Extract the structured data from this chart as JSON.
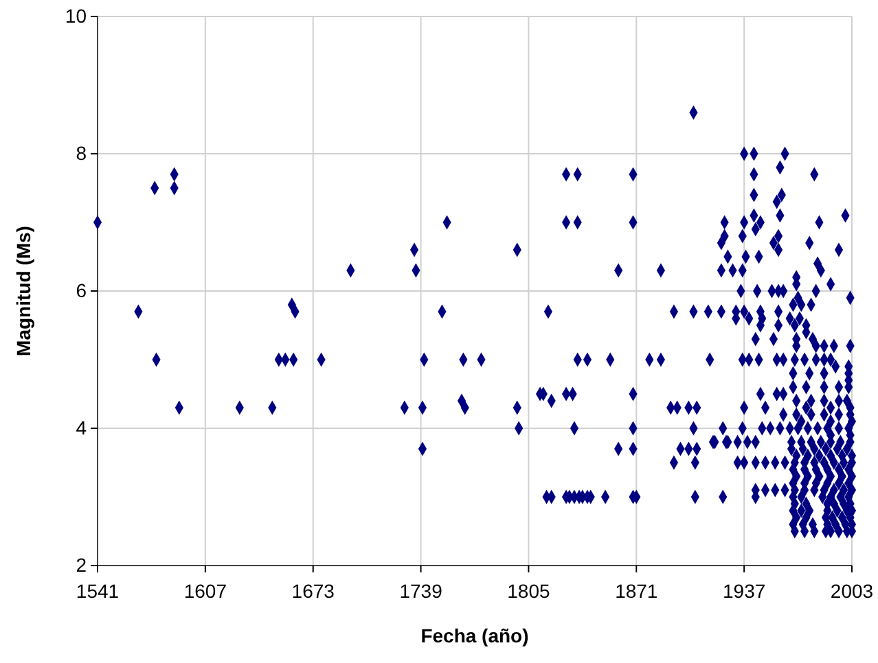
{
  "chart_data": {
    "type": "scatter",
    "xlabel": "Fecha (año)",
    "ylabel": "Magnitud (Ms)",
    "color": "#000080",
    "marker": "diamond",
    "grid": true,
    "xlim": [
      1541,
      2003
    ],
    "xticks": [
      1541,
      1607,
      1673,
      1739,
      1805,
      1871,
      1937,
      2003
    ],
    "ylim": [
      2,
      10
    ],
    "yticks": [
      2,
      4,
      6,
      8,
      10
    ],
    "x": [
      1541,
      1576,
      1588,
      1588,
      1566,
      1577,
      1591,
      1628,
      1648,
      1652,
      1656,
      1661,
      1660,
      1662,
      1678,
      1696,
      1735,
      1736,
      1755,
      1752,
      1741,
      1729,
      1740,
      1740,
      1765,
      1764,
      1766,
      1776,
      1798,
      1798,
      1799,
      1817,
      1828,
      1835,
      1869,
      1828,
      1835,
      1869,
      1860,
      1886,
      1906,
      1835,
      1841,
      1855,
      1879,
      1886,
      1916,
      1894,
      1906,
      1915,
      1812,
      1814,
      1819,
      1828,
      1832,
      1869,
      1892,
      1896,
      1903,
      1908,
      1833,
      1869,
      1906,
      1924,
      1919,
      1926,
      1860,
      1869,
      1898,
      1903,
      1908,
      1894,
      1907,
      1816,
      1819,
      1828,
      1830,
      1833,
      1836,
      1838,
      1841,
      1843,
      1852,
      1869,
      1871,
      1907,
      1924,
      1937,
      1943,
      1962,
      1943,
      1959,
      1980,
      1943,
      1957,
      1960,
      1943,
      1937,
      1925,
      1947,
      1959,
      1983,
      1999,
      1944,
      1936,
      1925,
      1923,
      1955,
      1958,
      1977,
      1958,
      1995,
      1927,
      1938,
      1946,
      1923,
      1930,
      1936,
      1982,
      1984,
      1969,
      1969,
      1990,
      1935,
      1945,
      1954,
      1958,
      1961,
      1981,
      1970,
      2002,
      1923,
      1932,
      1937,
      1947,
      1958,
      1967,
      1972,
      1978,
      1932,
      1940,
      1948,
      1965,
      1971,
      1947,
      1958,
      1968,
      1975,
      1975,
      1944,
      1955,
      1969,
      1979,
      1969,
      1981,
      1986,
      1992,
      2002,
      1936,
      1940,
      1946,
      1957,
      1961,
      1968,
      1974,
      1981,
      1986,
      1990,
      1993,
      2001,
      2001,
      2001,
      2001,
      1967,
      1977,
      1986,
      1967,
      1975,
      1986,
      1995,
      1947,
      1957,
      1961,
      1969,
      1978,
      1986,
      1995,
      2000,
      1937,
      1950,
      1961,
      1969,
      1978,
      1986,
      1995,
      2002,
      1936,
      1948,
      1953,
      1959,
      1965,
      1970,
      1976,
      1982,
      1988,
      1995,
      2001,
      1918,
      1927,
      1933,
      1939,
      1944,
      1966,
      1972,
      1978,
      1984,
      1990,
      1996,
      2002,
      1933,
      1937,
      1944,
      1950,
      1956,
      1962,
      1968,
      1974,
      1980,
      1986,
      1992,
      1998,
      2003,
      1944,
      1950,
      1956,
      1962,
      1968,
      1974,
      1980,
      1986,
      1992,
      1998,
      2003,
      1944,
      1967,
      1972,
      1985,
      1990,
      1996,
      2001,
      1966,
      1973,
      1980,
      1987,
      1994,
      2000,
      1969,
      1976,
      1983,
      1990,
      1997,
      2003,
      1967,
      1974,
      1981,
      1988,
      1995,
      2001,
      1969,
      1976,
      1983,
      1990,
      1997,
      2003,
      1967,
      1974,
      1981,
      1988,
      1995,
      2001,
      1968,
      1975,
      1988,
      1992,
      1998,
      2002,
      1967,
      1972,
      1977,
      1988,
      1994,
      2000,
      2003,
      1969,
      1975,
      1987,
      1991,
      1997,
      2002,
      1967,
      1973,
      1979,
      1988,
      1993,
      1999,
      2003,
      1968,
      1974,
      1980,
      1987,
      1990,
      1995,
      2000,
      2003,
      1990,
      2002,
      1972,
      1990,
      2003,
      1975,
      1990,
      2002
    ],
    "values": [
      7.0,
      7.5,
      7.7,
      7.5,
      5.7,
      5.0,
      4.3,
      4.3,
      4.3,
      5.0,
      5.0,
      5.0,
      5.8,
      5.7,
      5.0,
      6.3,
      6.6,
      6.3,
      7.0,
      5.7,
      5.0,
      4.3,
      4.3,
      3.7,
      5.0,
      4.4,
      4.3,
      5.0,
      6.6,
      4.3,
      4.0,
      5.7,
      7.7,
      7.7,
      7.7,
      7.0,
      7.0,
      7.0,
      6.3,
      6.3,
      8.6,
      5.0,
      5.0,
      5.0,
      5.0,
      5.0,
      5.0,
      5.7,
      5.7,
      5.7,
      4.5,
      4.5,
      4.4,
      4.5,
      4.5,
      4.5,
      4.3,
      4.3,
      4.3,
      4.3,
      4.0,
      4.0,
      4.0,
      4.0,
      3.8,
      3.8,
      3.7,
      3.7,
      3.7,
      3.7,
      3.7,
      3.5,
      3.5,
      3.0,
      3.0,
      3.0,
      3.0,
      3.0,
      3.0,
      3.0,
      3.0,
      3.0,
      3.0,
      3.0,
      3.0,
      3.0,
      3.0,
      8.0,
      8.0,
      8.0,
      7.7,
      7.8,
      7.7,
      7.4,
      7.3,
      7.4,
      7.1,
      7.0,
      7.0,
      7.0,
      7.1,
      7.0,
      7.1,
      6.9,
      6.8,
      6.8,
      6.7,
      6.7,
      6.8,
      6.7,
      6.6,
      6.6,
      6.5,
      6.5,
      6.5,
      6.3,
      6.3,
      6.3,
      6.4,
      6.3,
      6.2,
      6.1,
      6.1,
      6.0,
      6.0,
      6.0,
      6.0,
      6.0,
      6.0,
      5.9,
      5.9,
      5.7,
      5.7,
      5.7,
      5.7,
      5.7,
      5.8,
      5.8,
      5.8,
      5.6,
      5.6,
      5.6,
      5.6,
      5.6,
      5.5,
      5.5,
      5.5,
      5.5,
      5.4,
      5.3,
      5.3,
      5.3,
      5.3,
      5.2,
      5.2,
      5.2,
      5.2,
      5.2,
      5.0,
      5.0,
      5.0,
      5.0,
      5.0,
      5.0,
      5.0,
      5.0,
      5.0,
      5.0,
      4.9,
      4.9,
      4.8,
      4.7,
      4.6,
      4.8,
      4.8,
      4.8,
      4.6,
      4.6,
      4.6,
      4.6,
      4.5,
      4.5,
      4.5,
      4.4,
      4.4,
      4.4,
      4.4,
      4.4,
      4.3,
      4.3,
      4.2,
      4.2,
      4.2,
      4.2,
      4.2,
      4.2,
      4.0,
      4.0,
      4.0,
      4.0,
      4.0,
      4.0,
      4.0,
      4.0,
      4.0,
      4.0,
      4.0,
      3.8,
      3.8,
      3.8,
      3.8,
      3.8,
      3.8,
      3.8,
      3.8,
      3.8,
      3.8,
      3.8,
      3.8,
      3.5,
      3.5,
      3.5,
      3.5,
      3.5,
      3.5,
      3.5,
      3.5,
      3.5,
      3.5,
      3.5,
      3.5,
      3.5,
      3.1,
      3.1,
      3.1,
      3.1,
      3.1,
      3.1,
      3.1,
      3.1,
      3.1,
      3.1,
      3.1,
      3.0,
      3.0,
      3.0,
      3.0,
      3.0,
      3.0,
      3.0,
      3.7,
      3.7,
      3.7,
      3.7,
      3.7,
      3.7,
      3.6,
      3.6,
      3.6,
      3.6,
      3.6,
      3.6,
      3.4,
      3.4,
      3.4,
      3.4,
      3.4,
      3.4,
      3.3,
      3.3,
      3.3,
      3.3,
      3.3,
      3.3,
      3.2,
      3.2,
      3.2,
      3.2,
      3.2,
      3.2,
      2.9,
      2.9,
      2.9,
      2.9,
      2.9,
      2.9,
      2.8,
      2.8,
      2.8,
      2.8,
      2.8,
      2.8,
      2.8,
      2.7,
      2.7,
      2.7,
      2.7,
      2.7,
      2.7,
      2.6,
      2.6,
      2.6,
      2.6,
      2.6,
      2.6,
      2.6,
      2.5,
      2.5,
      2.5,
      2.5,
      2.5,
      2.5,
      2.5,
      2.5,
      3.9,
      3.9,
      4.1,
      4.1,
      4.1,
      4.3,
      4.3,
      4.3
    ]
  }
}
